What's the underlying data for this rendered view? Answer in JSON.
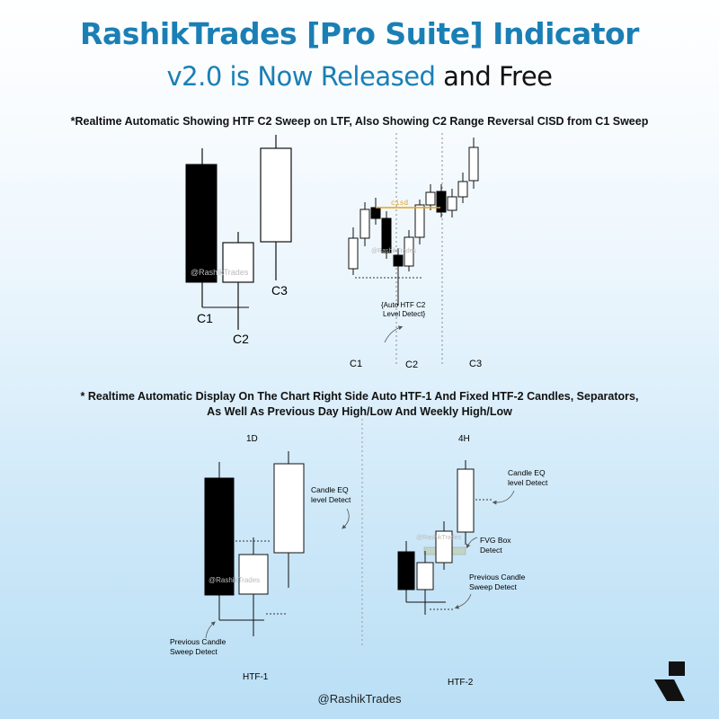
{
  "header": {
    "title": "RashikTrades [Pro Suite] Indicator",
    "subtitle_blue": "v2.0 is Now Released",
    "subtitle_dark": " and Free"
  },
  "section1": {
    "note": "*Realtime Automatic Showing HTF C2 Sweep on LTF, Also Showing C2 Range Reversal CISD from C1 Sweep",
    "left_labels": [
      "C1",
      "C2",
      "C3"
    ],
    "watermark": "@RashikTrades",
    "cisd_label": "cisd",
    "annotation_line1": "{Auto HTF C2",
    "annotation_line2": "Level Detect}",
    "bottom_labels": [
      "C1",
      "C2",
      "C3"
    ],
    "colors": {
      "cisd": "#e8a21c"
    }
  },
  "section2": {
    "note_line1": "* Realtime Automatic Display On The Chart Right Side Auto HTF-1 And Fixed HTF-2 Candles, Separators,",
    "note_line2": "As Well As Previous Day High/Low And Weekly High/Low",
    "htf1": {
      "timeframe": "1D",
      "eq_line1": "Candle EQ",
      "eq_line2": "level Detect",
      "sweep_line1": "Previous Candle",
      "sweep_line2": "Sweep Detect",
      "caption": "HTF-1"
    },
    "htf2": {
      "timeframe": "4H",
      "eq_line1": "Candle EQ",
      "eq_line2": "level Detect",
      "fvg_line1": "FVG Box",
      "fvg_line2": "Detect",
      "sweep_line1": "Previous Candle",
      "sweep_line2": "Sweep Detect",
      "caption": "HTF-2"
    }
  },
  "footer": {
    "handle": "@RashikTrades"
  }
}
